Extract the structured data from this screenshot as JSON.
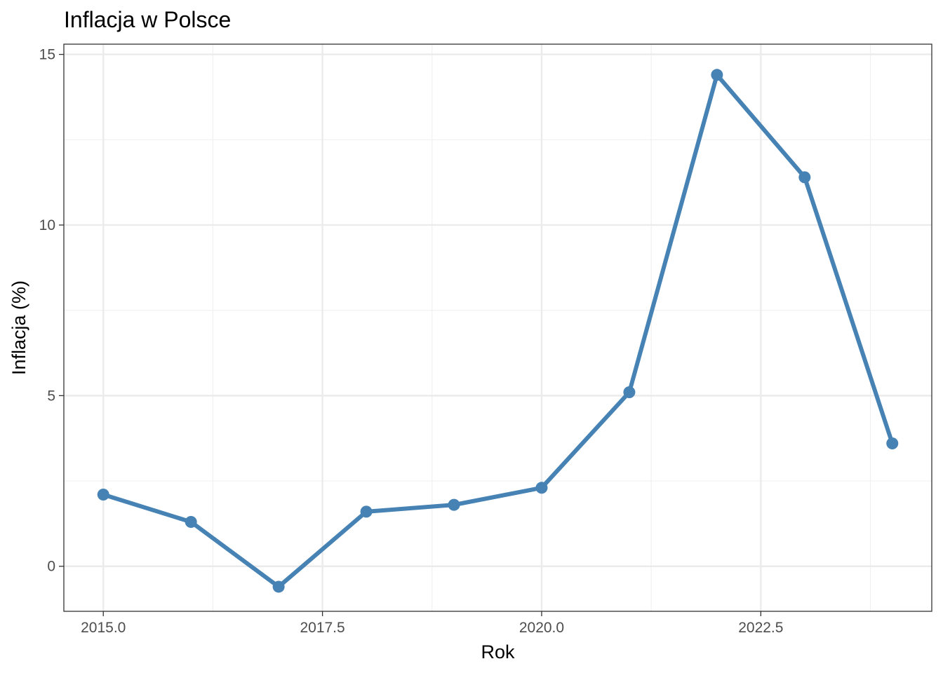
{
  "chart_data": {
    "type": "line",
    "title": "Inflacja w Polsce",
    "xlabel": "Rok",
    "ylabel": "Inflacja (%)",
    "xlim": [
      2014.55,
      2024.45
    ],
    "ylim": [
      -1.32,
      15.3
    ],
    "x_ticks": [
      2015.0,
      2017.5,
      2020.0,
      2022.5
    ],
    "x_tick_labels": [
      "2015.0",
      "2017.5",
      "2020.0",
      "2022.5"
    ],
    "x_minor_ticks": [
      2016.25,
      2018.75,
      2021.25,
      2023.75
    ],
    "y_ticks": [
      0,
      5,
      10,
      15
    ],
    "y_tick_labels": [
      "0",
      "5",
      "10",
      "15"
    ],
    "y_minor_ticks": [
      2.5,
      7.5,
      12.5
    ],
    "grid": true,
    "legend": "none",
    "series": [
      {
        "color": "#4682b4",
        "x": [
          2015,
          2016,
          2017,
          2018,
          2019,
          2020,
          2021,
          2022,
          2023,
          2024
        ],
        "y": [
          2.1,
          1.3,
          -0.6,
          1.6,
          1.8,
          2.3,
          5.1,
          14.4,
          11.4,
          3.6
        ]
      }
    ]
  }
}
